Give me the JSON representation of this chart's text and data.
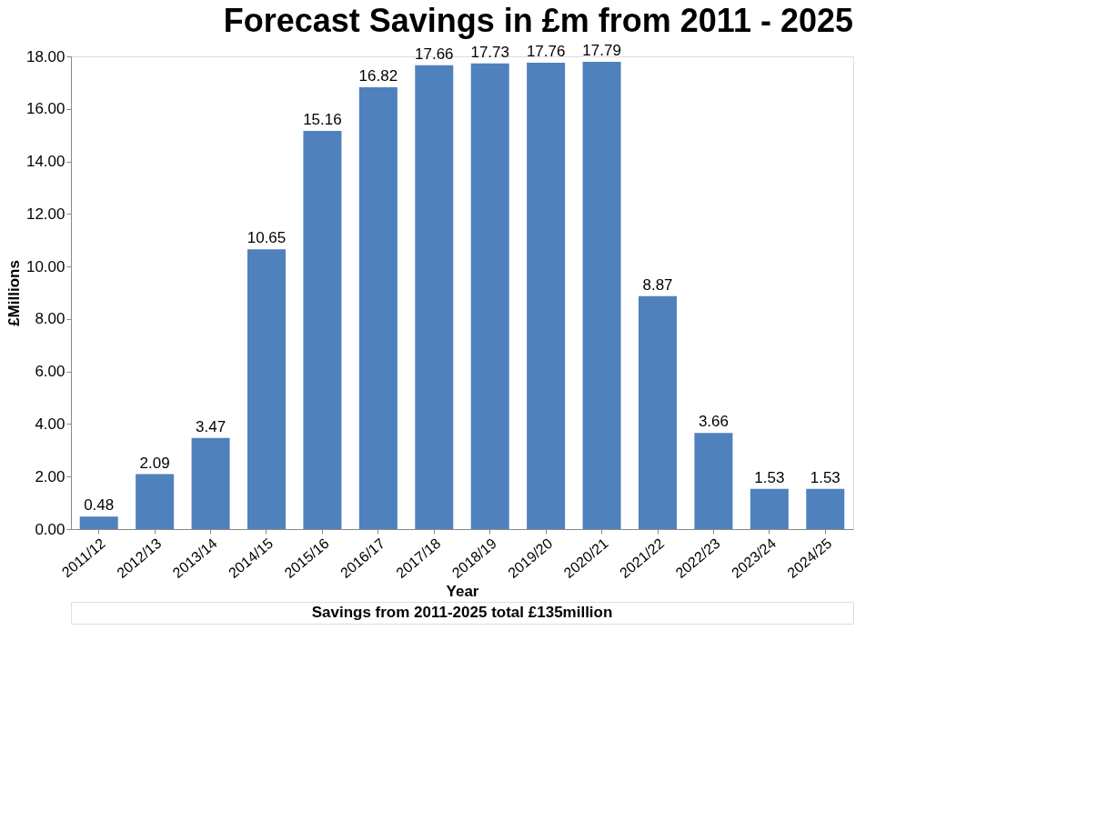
{
  "chart_data": {
    "type": "bar",
    "title": "Forecast Savings in £m from 2011 - 2025",
    "xlabel": "Year",
    "ylabel": "£Millions",
    "categories": [
      "2011/12",
      "2012/13",
      "2013/14",
      "2014/15",
      "2015/16",
      "2016/17",
      "2017/18",
      "2018/19",
      "2019/20",
      "2020/21",
      "2021/22",
      "2022/23",
      "2023/24",
      "2024/25"
    ],
    "values": [
      0.48,
      2.09,
      3.47,
      10.65,
      15.16,
      16.82,
      17.66,
      17.73,
      17.76,
      17.79,
      8.87,
      3.66,
      1.53,
      1.53
    ],
    "color": "#4f81bd",
    "ylim": [
      0,
      18
    ],
    "yticks": [
      {
        "value": 0,
        "label": "0.00"
      },
      {
        "value": 2,
        "label": "2.00"
      },
      {
        "value": 4,
        "label": "4.00"
      },
      {
        "value": 6,
        "label": "6.00"
      },
      {
        "value": 8,
        "label": "8.00"
      },
      {
        "value": 10,
        "label": "10.00"
      },
      {
        "value": 12,
        "label": "12.00"
      },
      {
        "value": 14,
        "label": "14.00"
      },
      {
        "value": 16,
        "label": "16.00"
      },
      {
        "value": 18,
        "label": "18.00"
      }
    ],
    "grid": false,
    "data_labels": true,
    "annotations": [
      "Savings from 2011-2025 total £135million"
    ]
  }
}
